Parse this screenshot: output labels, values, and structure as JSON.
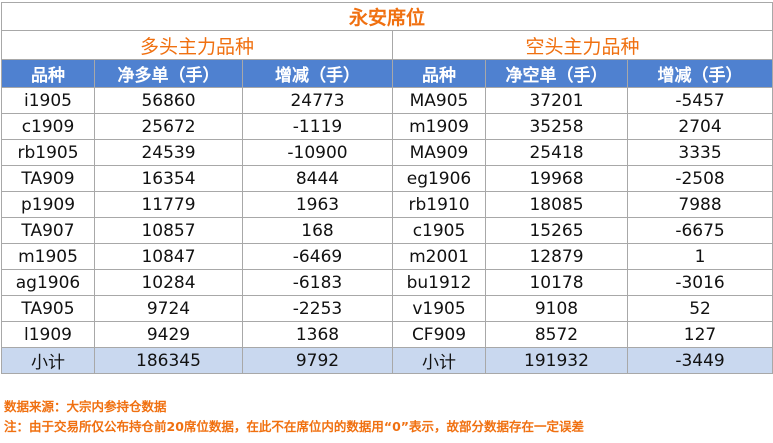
{
  "title": "永安席位",
  "sections": {
    "long": "多头主力品种",
    "short": "空头主力品种"
  },
  "headers": {
    "long": [
      "品种",
      "净多单（手）",
      "增减（手）"
    ],
    "short": [
      "品种",
      "净空单（手）",
      "增减（手）"
    ]
  },
  "rows": [
    {
      "long": [
        "i1905",
        "56860",
        "24773"
      ],
      "short": [
        "MA905",
        "37201",
        "-5457"
      ]
    },
    {
      "long": [
        "c1909",
        "25672",
        "-1119"
      ],
      "short": [
        "m1909",
        "35258",
        "2704"
      ]
    },
    {
      "long": [
        "rb1905",
        "24539",
        "-10900"
      ],
      "short": [
        "MA909",
        "25418",
        "3335"
      ]
    },
    {
      "long": [
        "TA909",
        "16354",
        "8444"
      ],
      "short": [
        "eg1906",
        "19968",
        "-2508"
      ]
    },
    {
      "long": [
        "p1909",
        "11779",
        "1963"
      ],
      "short": [
        "rb1910",
        "18085",
        "7988"
      ]
    },
    {
      "long": [
        "TA907",
        "10857",
        "168"
      ],
      "short": [
        "c1905",
        "15265",
        "-6675"
      ]
    },
    {
      "long": [
        "m1905",
        "10847",
        "-6469"
      ],
      "short": [
        "m2001",
        "12879",
        "1"
      ]
    },
    {
      "long": [
        "ag1906",
        "10284",
        "-6183"
      ],
      "short": [
        "bu1912",
        "10178",
        "-3016"
      ]
    },
    {
      "long": [
        "TA905",
        "9724",
        "-2253"
      ],
      "short": [
        "v1905",
        "9108",
        "52"
      ]
    },
    {
      "long": [
        "l1909",
        "9429",
        "1368"
      ],
      "short": [
        "CF909",
        "8572",
        "127"
      ]
    }
  ],
  "totals": {
    "long": [
      "小计",
      "186345",
      "9792"
    ],
    "short": [
      "小计",
      "191932",
      "-3449"
    ]
  },
  "footer": {
    "source": "数据来源：大宗内参持仓数据",
    "note": "注：由于交易所仅公布持仓前20席位数据，在此不在席位内的数据用“0”表示，故部分数据存在一定误差"
  },
  "colors": {
    "accent_orange": "#f07010",
    "header_blue": "#4f81d0",
    "total_row_bg": "#c9d8ef",
    "border_gray": "#a8a8a8"
  }
}
